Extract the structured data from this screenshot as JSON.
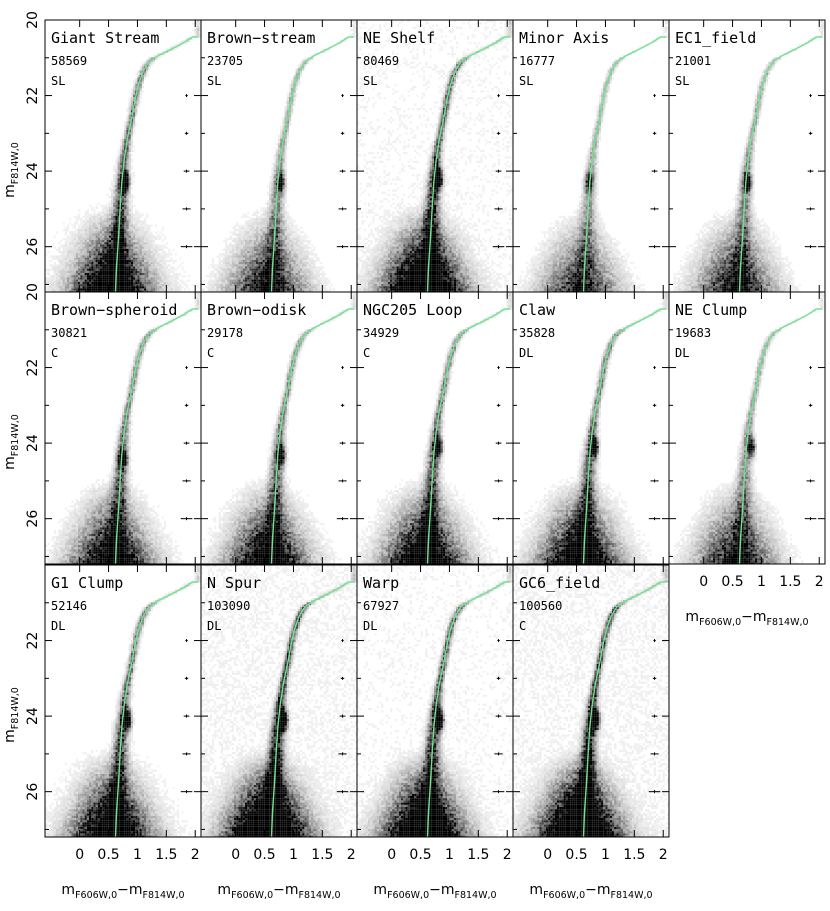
{
  "chart_data": {
    "type": "scatter",
    "description_style": "grid of Hess-diagram color-magnitude density plots with isochrone overlay",
    "xlabel": {
      "main": "m",
      "sub": "F606W,0",
      "minus": "−m",
      "sub2": "F814W,0"
    },
    "ylabel": {
      "main": "m",
      "sub": "F814W,0"
    },
    "xlim": [
      -0.6,
      2.1
    ],
    "ylim": [
      27.2,
      20.0
    ],
    "xticks": [
      0,
      0.5,
      1,
      1.5,
      2
    ],
    "xtick_labels": [
      "0",
      "0.5",
      "1",
      "1.5",
      "2"
    ],
    "yticks": [
      20,
      22,
      24,
      26
    ],
    "ytick_labels": [
      "20",
      "22",
      "24",
      "26"
    ],
    "isochrone_color": "#6fe38d",
    "isochrone": {
      "x": [
        0.62,
        0.64,
        0.67,
        0.7,
        0.73,
        0.77,
        0.83,
        0.9,
        0.96,
        1.02,
        1.1,
        1.2,
        1.35,
        1.55,
        1.8,
        1.95,
        2.05
      ],
      "y": [
        27.2,
        26.5,
        25.8,
        25.0,
        24.3,
        23.7,
        23.1,
        22.6,
        22.1,
        21.7,
        21.35,
        21.1,
        20.95,
        20.8,
        20.6,
        20.45,
        20.45
      ]
    },
    "error_bars": {
      "x": 1.85,
      "y": [
        22.0,
        23.0,
        24.0,
        25.0,
        26.0
      ],
      "xerr": [
        0.02,
        0.03,
        0.05,
        0.07,
        0.1
      ]
    },
    "panels": [
      {
        "name": "Giant Stream",
        "count": "58569",
        "type": "SL",
        "rc": [
          0.78,
          24.3
        ],
        "density": 1.0
      },
      {
        "name": "Brown−stream",
        "count": "23705",
        "type": "SL",
        "rc": [
          0.78,
          24.3
        ],
        "density": 0.6
      },
      {
        "name": "NE Shelf",
        "count": "80469",
        "type": "SL",
        "rc": [
          0.8,
          24.2
        ],
        "density": 1.2
      },
      {
        "name": "Minor Axis",
        "count": "16777",
        "type": "SL",
        "rc": [
          0.72,
          24.3
        ],
        "density": 0.5
      },
      {
        "name": "EC1_field",
        "count": "21001",
        "type": "SL",
        "rc": [
          0.75,
          24.3
        ],
        "density": 0.6
      },
      {
        "name": "Brown−spheroid",
        "count": "30821",
        "type": "C",
        "rc": [
          0.75,
          24.4
        ],
        "density": 0.8
      },
      {
        "name": "Brown−odisk",
        "count": "29178",
        "type": "C",
        "rc": [
          0.78,
          24.3
        ],
        "density": 0.8
      },
      {
        "name": "NGC205 Loop",
        "count": "34929",
        "type": "C",
        "rc": [
          0.8,
          24.1
        ],
        "density": 0.9
      },
      {
        "name": "Claw",
        "count": "35828",
        "type": "DL",
        "rc": [
          0.8,
          24.1
        ],
        "density": 0.9
      },
      {
        "name": "NE Clump",
        "count": "19683",
        "type": "DL",
        "rc": [
          0.82,
          24.1
        ],
        "density": 0.6
      },
      {
        "name": "G1 Clump",
        "count": "52146",
        "type": "DL",
        "rc": [
          0.82,
          24.1
        ],
        "density": 1.0
      },
      {
        "name": "N Spur",
        "count": "103090",
        "type": "DL",
        "rc": [
          0.82,
          24.1
        ],
        "density": 1.4
      },
      {
        "name": "Warp",
        "count": "67927",
        "type": "DL",
        "rc": [
          0.82,
          24.1
        ],
        "density": 1.2
      },
      {
        "name": "GC6_field",
        "count": "100560",
        "type": "C",
        "rc": [
          0.82,
          24.1
        ],
        "density": 1.4
      }
    ]
  }
}
